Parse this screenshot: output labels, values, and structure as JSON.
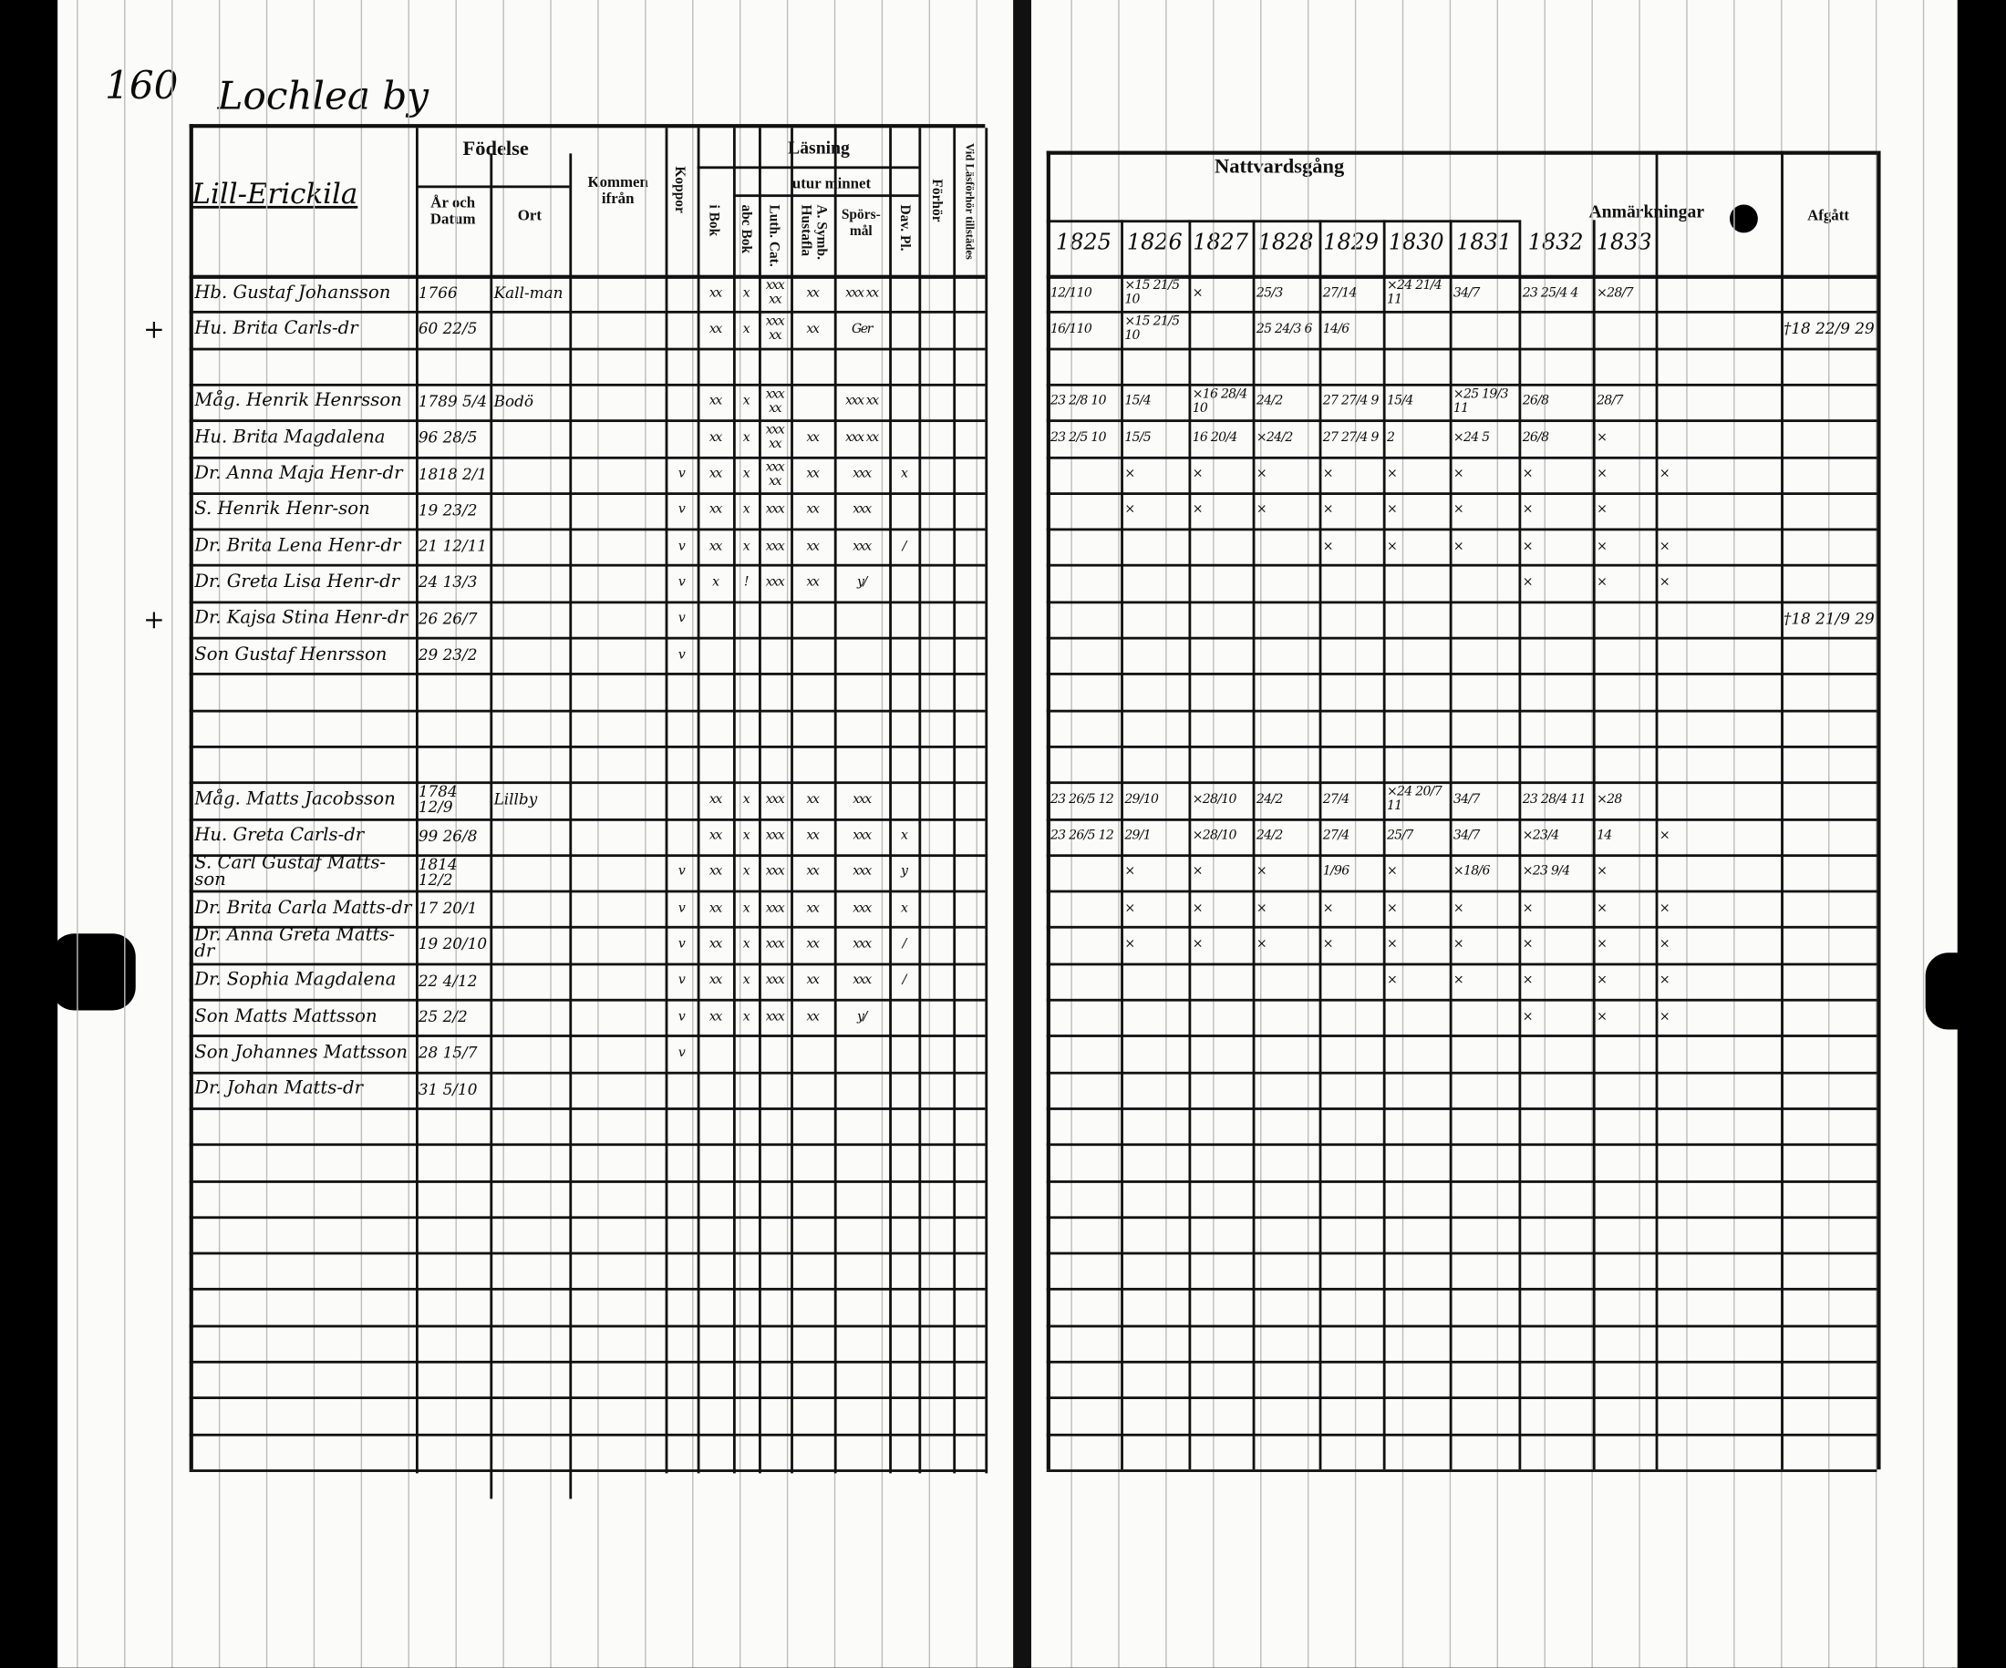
{
  "left": {
    "page_number": "160",
    "village": "Lochlea by",
    "farm": "Lill-Erickila",
    "headers": {
      "fodelse": "Födelse",
      "ar_och_datum": "År och Datum",
      "ort": "Ort",
      "kommen_ifran": "Kommen ifrån",
      "koppor": "Koppor",
      "lasning": "Läsning",
      "utur_minnet": "utur minnet",
      "i_bok": "i Bok",
      "abc_bok": "abc Bok",
      "luth_cat": "Luth. Cat.",
      "a_symb": "A. Symb. Hustafla",
      "sporsmal": "Spörs-mål",
      "dav_pl": "Dav. Pl.",
      "forhor": "Förhör",
      "vid_lasforhor": "Vid Läsförhör tillstädes"
    },
    "rows": [
      {
        "margin": "",
        "name": "Hb. Gustaf Johansson",
        "born": "1766",
        "place": "Kall-man",
        "marks": [
          "",
          "xx",
          "x",
          "xxx xx",
          "xx",
          "xxx xx",
          ""
        ]
      },
      {
        "margin": "+",
        "name": "Hu. Brita Carls-dr",
        "born": "60 22/5",
        "place": "",
        "marks": [
          "",
          "xx",
          "x",
          "xxx xx",
          "xx",
          "Ger",
          ""
        ]
      },
      {
        "margin": "",
        "name": "",
        "born": "",
        "place": "",
        "marks": [
          "",
          "",
          "",
          "",
          "",
          "",
          ""
        ]
      },
      {
        "margin": "",
        "name": "Måg. Henrik Henrsson",
        "born": "1789 5/4",
        "place": "Bodö",
        "marks": [
          "",
          "xx",
          "x",
          "xxx xx",
          "",
          "xxx xx",
          ""
        ]
      },
      {
        "margin": "",
        "name": "Hu. Brita Magdalena",
        "born": "96 28/5",
        "place": "",
        "marks": [
          "",
          "xx",
          "x",
          "xxx xx",
          "xx",
          "xxx xx",
          ""
        ]
      },
      {
        "margin": "",
        "name": "Dr. Anna Maja Henr-dr",
        "born": "1818 2/1",
        "place": "",
        "marks": [
          "v",
          "xx",
          "x",
          "xxx xx",
          "xx",
          "xxx",
          "x"
        ]
      },
      {
        "margin": "",
        "name": "S. Henrik Henr-son",
        "born": "19 23/2",
        "place": "",
        "marks": [
          "v",
          "xx",
          "x",
          "xxx",
          "xx",
          "xxx",
          ""
        ]
      },
      {
        "margin": "",
        "name": "Dr. Brita Lena Henr-dr",
        "born": "21 12/11",
        "place": "",
        "marks": [
          "v",
          "xx",
          "x",
          "xxx",
          "xx",
          "xxx",
          "/"
        ]
      },
      {
        "margin": "",
        "name": "Dr. Greta Lisa Henr-dr",
        "born": "24 13/3",
        "place": "",
        "marks": [
          "v",
          "x",
          "!",
          "xxx",
          "xx",
          "y/",
          ""
        ]
      },
      {
        "margin": "+",
        "name": "Dr. Kajsa Stina Henr-dr",
        "born": "26 26/7",
        "place": "",
        "marks": [
          "v",
          "",
          "",
          "",
          "",
          "",
          ""
        ]
      },
      {
        "margin": "",
        "name": "Son Gustaf Henrsson",
        "born": "29 23/2",
        "place": "",
        "marks": [
          "v",
          "",
          "",
          "",
          "",
          "",
          ""
        ]
      },
      {
        "margin": "",
        "name": "",
        "born": "",
        "place": "",
        "marks": [
          "",
          "",
          "",
          "",
          "",
          "",
          ""
        ]
      },
      {
        "margin": "",
        "name": "",
        "born": "",
        "place": "",
        "marks": [
          "",
          "",
          "",
          "",
          "",
          "",
          ""
        ]
      },
      {
        "margin": "",
        "name": "",
        "born": "",
        "place": "",
        "marks": [
          "",
          "",
          "",
          "",
          "",
          "",
          ""
        ]
      },
      {
        "margin": "",
        "name": "Måg. Matts Jacobsson",
        "born": "1784 12/9",
        "place": "Lillby",
        "marks": [
          "",
          "xx",
          "x",
          "xxx",
          "xx",
          "xxx",
          ""
        ]
      },
      {
        "margin": "",
        "name": "Hu. Greta Carls-dr",
        "born": "99 26/8",
        "place": "",
        "marks": [
          "",
          "xx",
          "x",
          "xxx",
          "xx",
          "xxx",
          "x"
        ]
      },
      {
        "margin": "",
        "name": "S. Carl Gustaf Matts-son",
        "born": "1814 12/2",
        "place": "",
        "marks": [
          "v",
          "xx",
          "x",
          "xxx",
          "xx",
          "xxx",
          "y"
        ]
      },
      {
        "margin": "",
        "name": "Dr. Brita Carla Matts-dr",
        "born": "17 20/1",
        "place": "",
        "marks": [
          "v",
          "xx",
          "x",
          "xxx",
          "xx",
          "xxx",
          "x"
        ]
      },
      {
        "margin": "",
        "name": "Dr. Anna Greta Matts-dr",
        "born": "19 20/10",
        "place": "",
        "marks": [
          "v",
          "xx",
          "x",
          "xxx",
          "xx",
          "xxx",
          "/"
        ]
      },
      {
        "margin": "",
        "name": "Dr. Sophia Magdalena",
        "born": "22 4/12",
        "place": "",
        "marks": [
          "v",
          "xx",
          "x",
          "xxx",
          "xx",
          "xxx",
          "/"
        ]
      },
      {
        "margin": "",
        "name": "Son Matts Mattsson",
        "born": "25 2/2",
        "place": "",
        "marks": [
          "v",
          "xx",
          "x",
          "xxx",
          "xx",
          "y/",
          ""
        ]
      },
      {
        "margin": "",
        "name": "Son Johannes Mattsson",
        "born": "28 15/7",
        "place": "",
        "marks": [
          "v",
          "",
          "",
          "",
          "",
          "",
          ""
        ]
      },
      {
        "margin": "",
        "name": "Dr. Johan Matts-dr",
        "born": "31 5/10",
        "place": "",
        "marks": [
          "",
          "",
          "",
          "",
          "",
          "",
          ""
        ]
      }
    ]
  },
  "right": {
    "headers": {
      "nattvardsgang": "Nattvardsgång",
      "years": [
        "1825",
        "1826",
        "1827",
        "1828",
        "1829",
        "1830",
        "1831",
        "1832",
        "1833"
      ],
      "anmarkningar": "Anmärkningar",
      "afgatt": "Afgått"
    },
    "rows": [
      {
        "cells": [
          "12/110",
          "×15 21/5 10",
          "×",
          "25/3",
          "27/14",
          "×24 21/4 11",
          "34/7",
          "23 25/4 4",
          "×28/7",
          ""
        ],
        "afgatt": ""
      },
      {
        "cells": [
          "16/110",
          "×15 21/5 10",
          "",
          "25 24/3 6",
          "14/6",
          "",
          "",
          "",
          "",
          ""
        ],
        "afgatt": "†18 22/9 29"
      },
      {
        "cells": [
          "",
          "",
          "",
          "",
          "",
          "",
          "",
          "",
          "",
          ""
        ],
        "afgatt": ""
      },
      {
        "cells": [
          "23 2/8 10",
          "15/4",
          "×16 28/4 10",
          "24/2",
          "27 27/4 9",
          "15/4",
          "×25 19/3 11",
          "26/8",
          "28/7",
          ""
        ],
        "afgatt": ""
      },
      {
        "cells": [
          "23 2/5 10",
          "15/5",
          "16 20/4",
          "×24/2",
          "27 27/4 9",
          "2",
          "×24 5",
          "26/8",
          "×",
          ""
        ],
        "afgatt": ""
      },
      {
        "cells": [
          "",
          "×",
          "×",
          "×",
          "×",
          "×",
          "×",
          "×",
          "×",
          "×"
        ],
        "afgatt": ""
      },
      {
        "cells": [
          "",
          "×",
          "×",
          "×",
          "×",
          "×",
          "×",
          "×",
          "×",
          ""
        ],
        "afgatt": ""
      },
      {
        "cells": [
          "",
          "",
          "",
          "",
          "×",
          "×",
          "×",
          "×",
          "×",
          "×"
        ],
        "afgatt": ""
      },
      {
        "cells": [
          "",
          "",
          "",
          "",
          "",
          "",
          "",
          "×",
          "×",
          "×"
        ],
        "afgatt": ""
      },
      {
        "cells": [
          "",
          "",
          "",
          "",
          "",
          "",
          "",
          "",
          "",
          ""
        ],
        "afgatt": "†18 21/9 29"
      },
      {
        "cells": [
          "",
          "",
          "",
          "",
          "",
          "",
          "",
          "",
          "",
          ""
        ],
        "afgatt": ""
      },
      {
        "cells": [
          "",
          "",
          "",
          "",
          "",
          "",
          "",
          "",
          "",
          ""
        ],
        "afgatt": ""
      },
      {
        "cells": [
          "",
          "",
          "",
          "",
          "",
          "",
          "",
          "",
          "",
          ""
        ],
        "afgatt": ""
      },
      {
        "cells": [
          "",
          "",
          "",
          "",
          "",
          "",
          "",
          "",
          "",
          ""
        ],
        "afgatt": ""
      },
      {
        "cells": [
          "23 26/5 12",
          "29/10",
          "×28/10",
          "24/2",
          "27/4",
          "×24 20/7 11",
          "34/7",
          "23 28/4 11",
          "×28",
          ""
        ],
        "afgatt": ""
      },
      {
        "cells": [
          "23 26/5 12",
          "29/1",
          "×28/10",
          "24/2",
          "27/4",
          "25/7",
          "34/7",
          "×23/4",
          "14",
          "×"
        ],
        "afgatt": ""
      },
      {
        "cells": [
          "",
          "×",
          "×",
          "×",
          "1/96",
          "×",
          "×18/6",
          "×23 9/4",
          "×",
          ""
        ],
        "afgatt": ""
      },
      {
        "cells": [
          "",
          "×",
          "×",
          "×",
          "×",
          "×",
          "×",
          "×",
          "×",
          "×"
        ],
        "afgatt": ""
      },
      {
        "cells": [
          "",
          "×",
          "×",
          "×",
          "×",
          "×",
          "×",
          "×",
          "×",
          "×"
        ],
        "afgatt": ""
      },
      {
        "cells": [
          "",
          "",
          "",
          "",
          "",
          "×",
          "×",
          "×",
          "×",
          "×"
        ],
        "afgatt": ""
      },
      {
        "cells": [
          "",
          "",
          "",
          "",
          "",
          "",
          "",
          "×",
          "×",
          "×"
        ],
        "afgatt": ""
      }
    ]
  }
}
